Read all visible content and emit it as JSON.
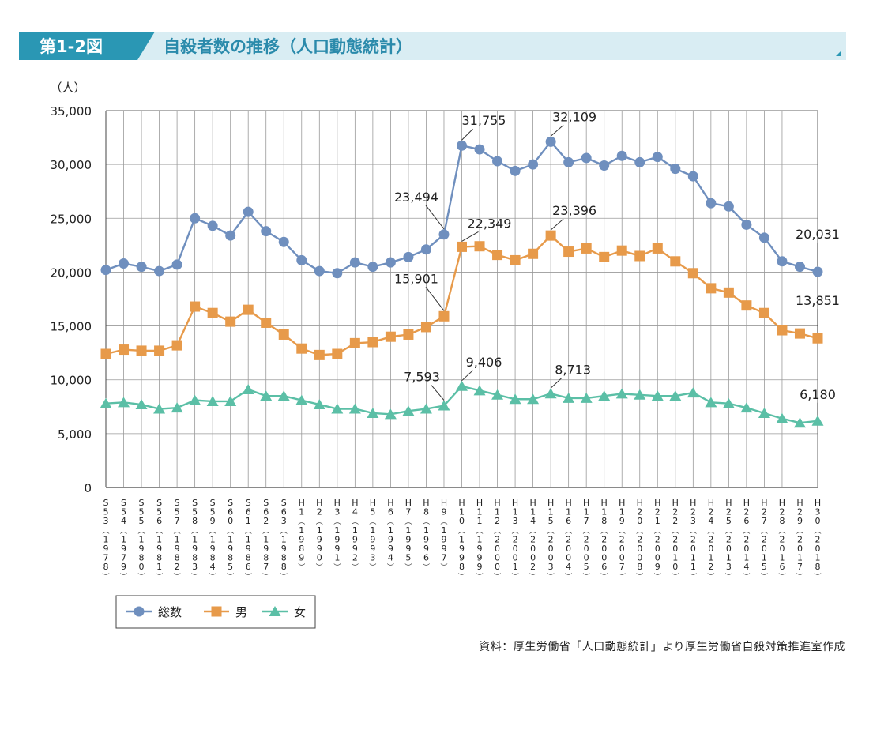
{
  "header": {
    "fig_number": "第1-2図",
    "title": "自殺者数の推移（人口動態統計）",
    "accent_color": "#2a97b4",
    "band_color": "#d9edf3",
    "title_color": "#2a8aab"
  },
  "source_note": "資料：厚生労働省「人口動態統計」より厚生労働省自殺対策推進室作成",
  "chart_data": {
    "type": "line",
    "ylabel": "（人）",
    "ylim": [
      0,
      35000
    ],
    "yticks": [
      0,
      5000,
      10000,
      15000,
      20000,
      25000,
      30000,
      35000
    ],
    "ytick_labels": [
      "0",
      "5,000",
      "10,000",
      "15,000",
      "20,000",
      "25,000",
      "30,000",
      "35,000"
    ],
    "grid": true,
    "legend_position": "bottom-left",
    "categories": [
      "S53（1978）",
      "S54（1979）",
      "S55（1980）",
      "S56（1981）",
      "S57（1982）",
      "S58（1983）",
      "S59（1984）",
      "S60（1985）",
      "S61（1986）",
      "S62（1987）",
      "S63（1988）",
      "H1（1989）",
      "H2（1990）",
      "H3（1991）",
      "H4（1992）",
      "H5（1993）",
      "H6（1994）",
      "H7（1995）",
      "H8（1996）",
      "H9（1997）",
      "H10（1998）",
      "H11（1999）",
      "H12（2000）",
      "H13（2001）",
      "H14（2002）",
      "H15（2003）",
      "H16（2004）",
      "H17（2005）",
      "H18（2006）",
      "H19（2007）",
      "H20（2008）",
      "H21（2009）",
      "H22（2010）",
      "H23（2011）",
      "H24（2012）",
      "H25（2013）",
      "H26（2014）",
      "H27（2015）",
      "H28（2016）",
      "H29（2017）",
      "H30（2018）"
    ],
    "series": [
      {
        "name": "総数",
        "color": "#6f8fbe",
        "marker": "circle",
        "values": [
          20200,
          20800,
          20500,
          20100,
          20700,
          25000,
          24300,
          23400,
          25600,
          23800,
          22800,
          21100,
          20100,
          19900,
          20900,
          20500,
          20900,
          21400,
          22100,
          23494,
          31755,
          31400,
          30300,
          29400,
          30000,
          32109,
          30200,
          30600,
          29900,
          30800,
          30200,
          30700,
          29600,
          28900,
          26400,
          26100,
          24400,
          23200,
          21000,
          20500,
          20031
        ]
      },
      {
        "name": "男",
        "color": "#e79a4a",
        "marker": "square",
        "values": [
          12400,
          12800,
          12700,
          12700,
          13200,
          16800,
          16200,
          15400,
          16500,
          15300,
          14200,
          12900,
          12300,
          12400,
          13400,
          13500,
          14000,
          14200,
          14900,
          15901,
          22349,
          22400,
          21600,
          21100,
          21700,
          23396,
          21900,
          22200,
          21400,
          22000,
          21500,
          22200,
          21000,
          19900,
          18500,
          18100,
          16900,
          16200,
          14600,
          14300,
          13851
        ]
      },
      {
        "name": "女",
        "color": "#5bbfa6",
        "marker": "triangle",
        "values": [
          7800,
          7900,
          7700,
          7300,
          7400,
          8100,
          8000,
          8000,
          9100,
          8500,
          8500,
          8100,
          7700,
          7300,
          7300,
          6900,
          6800,
          7100,
          7300,
          7593,
          9406,
          9000,
          8600,
          8200,
          8200,
          8713,
          8300,
          8300,
          8500,
          8700,
          8600,
          8500,
          8500,
          8800,
          7900,
          7800,
          7400,
          6900,
          6400,
          6000,
          6180
        ]
      }
    ],
    "annotations": [
      {
        "series": 0,
        "index": 19,
        "text": "23,494"
      },
      {
        "series": 0,
        "index": 20,
        "text": "31,755"
      },
      {
        "series": 0,
        "index": 25,
        "text": "32,109"
      },
      {
        "series": 0,
        "index": 40,
        "text": "20,031"
      },
      {
        "series": 1,
        "index": 19,
        "text": "15,901"
      },
      {
        "series": 1,
        "index": 20,
        "text": "22,349"
      },
      {
        "series": 1,
        "index": 25,
        "text": "23,396"
      },
      {
        "series": 1,
        "index": 40,
        "text": "13,851"
      },
      {
        "series": 2,
        "index": 19,
        "text": "7,593"
      },
      {
        "series": 2,
        "index": 20,
        "text": "9,406"
      },
      {
        "series": 2,
        "index": 25,
        "text": "8,713"
      },
      {
        "series": 2,
        "index": 40,
        "text": "6,180"
      }
    ]
  }
}
